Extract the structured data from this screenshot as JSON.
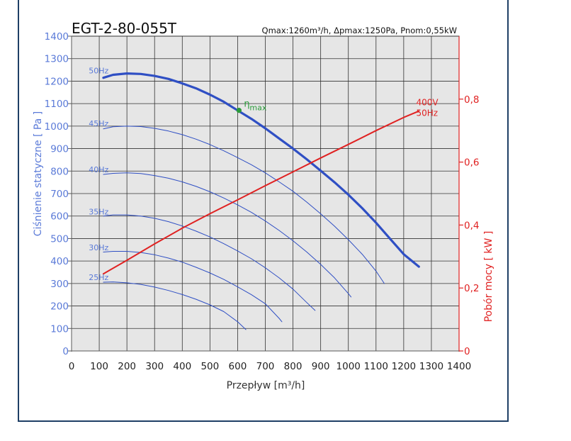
{
  "chart_data": {
    "type": "line",
    "title": "EGT-2-80-055T",
    "subtitle": "Qmax:1260m³/h, Δpmax:1250Pa, Pnom:0,55kW",
    "xlabel": "Przepływ",
    "xunit": "m³/h",
    "ylabel": "Ciśnienie statyczne",
    "yunit": "Pa",
    "y2label": "Pobór mocy",
    "y2unit": "kW",
    "xlim": [
      0,
      1400
    ],
    "ylim": [
      0,
      1400
    ],
    "y2lim": [
      0,
      1.0
    ],
    "xticks": [
      "0",
      "100",
      "200",
      "300",
      "400",
      "500",
      "600",
      "700",
      "800",
      "900",
      "1000",
      "1100",
      "1200",
      "1300",
      "1400"
    ],
    "yticks": [
      "0",
      "100",
      "200",
      "300",
      "400",
      "500",
      "600",
      "700",
      "800",
      "900",
      "1000",
      "1100",
      "1200",
      "1300",
      "1400"
    ],
    "y2ticks": [
      {
        "value": 0,
        "label": "0"
      },
      {
        "value": 0.2,
        "label": "0,2"
      },
      {
        "value": 0.4,
        "label": "0,4"
      },
      {
        "value": 0.6,
        "label": "0,6"
      },
      {
        "value": 0.8,
        "label": "0,8"
      }
    ],
    "grid": true,
    "colors": {
      "pressure": "#2f4fc4",
      "power": "#e02222",
      "eta": "#2a9a3a",
      "ylabel": "#5a7ad8",
      "y2label": "#e02222",
      "plot_bg": "#e6e6e6",
      "grid": "#333333",
      "frame": "#1f3f66"
    },
    "series": [
      {
        "name": "50Hz",
        "axis": "left",
        "width": 3.2,
        "x": [
          115,
          150,
          200,
          250,
          300,
          350,
          400,
          450,
          500,
          550,
          600,
          650,
          700,
          750,
          800,
          850,
          900,
          950,
          1000,
          1050,
          1100,
          1150,
          1200,
          1255
        ],
        "y": [
          1215,
          1228,
          1234,
          1232,
          1223,
          1210,
          1190,
          1168,
          1140,
          1108,
          1070,
          1032,
          990,
          945,
          900,
          852,
          802,
          750,
          695,
          635,
          570,
          500,
          430,
          375
        ]
      },
      {
        "name": "45Hz",
        "axis": "left",
        "width": 1,
        "x": [
          115,
          150,
          200,
          250,
          300,
          350,
          400,
          450,
          500,
          550,
          600,
          650,
          700,
          750,
          800,
          850,
          900,
          950,
          1000,
          1050,
          1100,
          1130
        ],
        "y": [
          988,
          997,
          1000,
          998,
          990,
          978,
          962,
          942,
          918,
          890,
          860,
          828,
          792,
          752,
          710,
          662,
          610,
          555,
          495,
          430,
          355,
          300
        ]
      },
      {
        "name": "40Hz",
        "axis": "left",
        "width": 1,
        "x": [
          115,
          150,
          200,
          250,
          300,
          350,
          400,
          450,
          500,
          550,
          600,
          650,
          700,
          750,
          800,
          850,
          900,
          950,
          1000,
          1010
        ],
        "y": [
          785,
          790,
          792,
          789,
          780,
          768,
          752,
          732,
          708,
          680,
          650,
          616,
          578,
          536,
          490,
          440,
          385,
          325,
          255,
          240
        ]
      },
      {
        "name": "35Hz",
        "axis": "left",
        "width": 1,
        "x": [
          115,
          150,
          200,
          250,
          300,
          350,
          400,
          450,
          500,
          550,
          600,
          650,
          700,
          750,
          800,
          850,
          880
        ],
        "y": [
          600,
          605,
          605,
          600,
          590,
          575,
          556,
          533,
          507,
          477,
          445,
          410,
          370,
          325,
          275,
          215,
          180
        ]
      },
      {
        "name": "30Hz",
        "axis": "left",
        "width": 1,
        "x": [
          115,
          150,
          200,
          250,
          300,
          350,
          400,
          450,
          500,
          550,
          600,
          650,
          700,
          750,
          760
        ],
        "y": [
          440,
          443,
          443,
          438,
          428,
          413,
          395,
          372,
          347,
          318,
          285,
          250,
          210,
          145,
          130
        ]
      },
      {
        "name": "25Hz",
        "axis": "left",
        "width": 1,
        "x": [
          115,
          150,
          200,
          250,
          300,
          350,
          400,
          450,
          500,
          550,
          600,
          630
        ],
        "y": [
          306,
          307,
          303,
          296,
          284,
          269,
          251,
          230,
          205,
          175,
          130,
          95
        ]
      },
      {
        "name": "400V 50Hz",
        "axis": "right",
        "width": 2,
        "x": [
          115,
          200,
          300,
          400,
          500,
          600,
          700,
          800,
          900,
          1000,
          1100,
          1200,
          1255
        ],
        "y": [
          0.245,
          0.288,
          0.34,
          0.39,
          0.436,
          0.48,
          0.525,
          0.569,
          0.613,
          0.656,
          0.7,
          0.742,
          0.762
        ]
      }
    ],
    "curve_labels": [
      {
        "text": "50Hz",
        "x": 62,
        "y": 1235
      },
      {
        "text": "45Hz",
        "x": 62,
        "y": 1000
      },
      {
        "text": "40Hz",
        "x": 62,
        "y": 795
      },
      {
        "text": "35Hz",
        "x": 62,
        "y": 607
      },
      {
        "text": "30Hz",
        "x": 62,
        "y": 448
      },
      {
        "text": "25Hz",
        "x": 62,
        "y": 315
      }
    ],
    "power_label": {
      "line1": "400V",
      "line2": "50Hz",
      "x": 1245,
      "y": 0.78
    },
    "eta_point": {
      "label": "η",
      "sub": "max",
      "x": 605,
      "y": 1070
    }
  }
}
